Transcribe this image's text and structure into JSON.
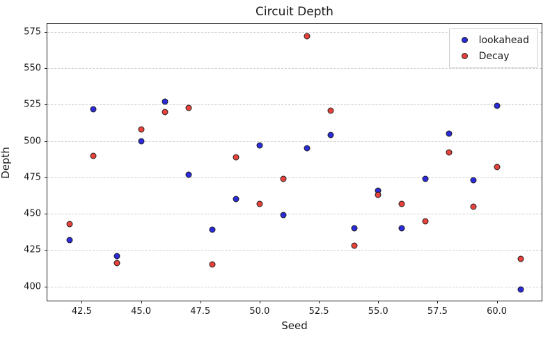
{
  "chart_data": {
    "type": "scatter",
    "title": "Circuit Depth",
    "xlabel": "Seed",
    "ylabel": "Depth",
    "x": [
      42,
      43,
      44,
      45,
      46,
      47,
      48,
      49,
      50,
      51,
      52,
      53,
      54,
      55,
      56,
      57,
      58,
      59,
      60,
      61
    ],
    "series": [
      {
        "name": "lookahead",
        "color": "#2b2bd9",
        "values": [
          432,
          522,
          421,
          500,
          527,
          477,
          439,
          460,
          497,
          449,
          495,
          504,
          440,
          466,
          440,
          474,
          505,
          473,
          524,
          398
        ]
      },
      {
        "name": "Decay",
        "color": "#e8423c",
        "values": [
          443,
          490,
          416,
          508,
          520,
          523,
          415,
          489,
          457,
          474,
          572,
          521,
          428,
          463,
          457,
          445,
          492,
          455,
          482,
          419
        ]
      }
    ],
    "xlim": [
      41.05,
      61.95
    ],
    "ylim": [
      389.3,
      580.7
    ],
    "xticks": [
      42.5,
      45.0,
      47.5,
      50.0,
      52.5,
      55.0,
      57.5,
      60.0
    ],
    "xtick_labels": [
      "42.5",
      "45.0",
      "47.5",
      "50.0",
      "52.5",
      "55.0",
      "57.5",
      "60.0"
    ],
    "yticks": [
      400,
      425,
      450,
      475,
      500,
      525,
      550,
      575
    ],
    "ytick_labels": [
      "400",
      "425",
      "450",
      "475",
      "500",
      "525",
      "550",
      "575"
    ],
    "grid": "horizontal-dashed-only",
    "gridline_color": "#cfcccf",
    "legend_position": "upper-right",
    "marker_edge_color": "#1c1c1c",
    "spine_color": "#1a1a1a",
    "background_color": "#ffffff"
  }
}
